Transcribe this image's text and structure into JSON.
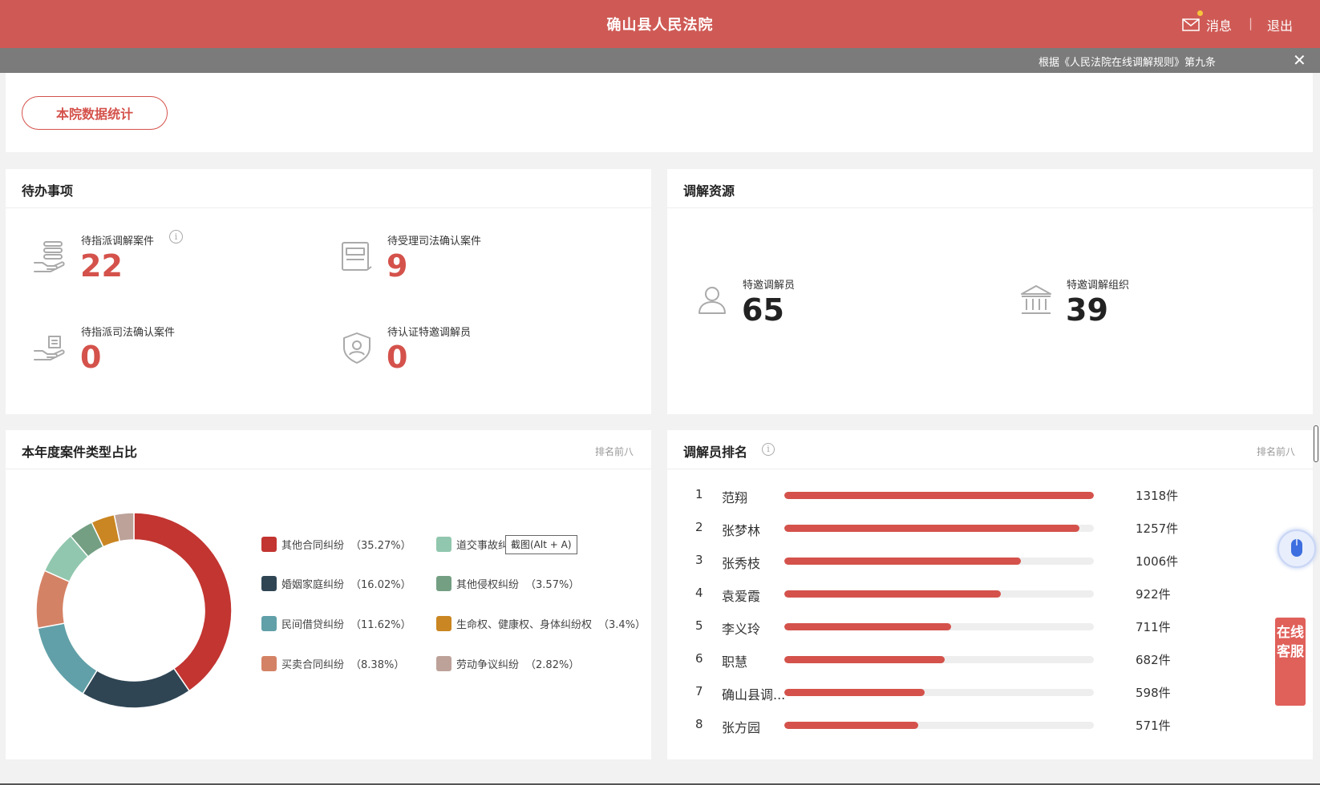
{
  "header": {
    "title": "确山县人民法院",
    "message": "消息",
    "separator": "|",
    "logout": "退出"
  },
  "notice": {
    "text": "根据《人民法院在线调解规则》第九条",
    "close": "✕"
  },
  "top": {
    "stats_button": "本院数据统计"
  },
  "todo": {
    "title": "待办事项",
    "items": [
      {
        "label": "待指派调解案件",
        "value": "22",
        "icon": "hand-stack-icon"
      },
      {
        "label": "待受理司法确认案件",
        "value": "9",
        "icon": "document-icon"
      },
      {
        "label": "待指派司法确认案件",
        "value": "0",
        "icon": "hand-court-icon"
      },
      {
        "label": "待认证特邀调解员",
        "value": "0",
        "icon": "shield-person-icon"
      }
    ]
  },
  "resources": {
    "title": "调解资源",
    "items": [
      {
        "label": "特邀调解员",
        "value": "65",
        "icon": "person-icon"
      },
      {
        "label": "特邀调解组织",
        "value": "39",
        "icon": "institution-icon"
      }
    ]
  },
  "case_types": {
    "title": "本年度案件类型占比",
    "more": "排名前八",
    "tooltip": "截图(Alt + A)",
    "legend": [
      {
        "name": "其他合同纠纷",
        "pct": "（35.27%）",
        "color": "#c23531"
      },
      {
        "name": "道交事故纠纷",
        "pct": "",
        "color": "#91c7ae"
      },
      {
        "name": "婚姻家庭纠纷",
        "pct": "（16.02%）",
        "color": "#2f4554"
      },
      {
        "name": "其他侵权纠纷",
        "pct": "（3.57%）",
        "color": "#749f83"
      },
      {
        "name": "民间借贷纠纷",
        "pct": "（11.62%）",
        "color": "#61a0a8"
      },
      {
        "name": "生命权、健康权、身体纠纷权",
        "pct": "（3.4%）",
        "color": "#ca8622"
      },
      {
        "name": "买卖合同纠纷",
        "pct": "（8.38%）",
        "color": "#d48265"
      },
      {
        "name": "劳动争议纠纷",
        "pct": "（2.82%）",
        "color": "#bda29a"
      }
    ]
  },
  "chart_data": {
    "type": "pie",
    "labels": [
      "其他合同纠纷",
      "婚姻家庭纠纷",
      "民间借贷纠纷",
      "买卖合同纠纷",
      "道交事故纠纷",
      "其他侵权纠纷",
      "生命权、健康权、身体纠纷权",
      "劳动争议纠纷"
    ],
    "values": [
      35.27,
      16.02,
      11.62,
      8.38,
      6.2,
      3.57,
      3.4,
      2.82
    ],
    "colors": [
      "#c23531",
      "#2f4554",
      "#61a0a8",
      "#d48265",
      "#91c7ae",
      "#749f83",
      "#ca8622",
      "#bda29a"
    ],
    "donut": true
  },
  "ranking": {
    "title": "调解员排名",
    "more": "排名前八",
    "rows": [
      {
        "rank": "1",
        "name": "范翔",
        "count": "1318件",
        "ratio": 1.0
      },
      {
        "rank": "2",
        "name": "张梦林",
        "count": "1257件",
        "ratio": 0.954
      },
      {
        "rank": "3",
        "name": "张秀枝",
        "count": "1006件",
        "ratio": 0.763
      },
      {
        "rank": "4",
        "name": "袁爱霞",
        "count": "922件",
        "ratio": 0.7
      },
      {
        "rank": "5",
        "name": "李义玲",
        "count": "711件",
        "ratio": 0.539
      },
      {
        "rank": "6",
        "name": "职慧",
        "count": "682件",
        "ratio": 0.517
      },
      {
        "rank": "7",
        "name": "确山县调...",
        "count": "598件",
        "ratio": 0.454
      },
      {
        "rank": "8",
        "name": "张方园",
        "count": "571件",
        "ratio": 0.433
      }
    ]
  },
  "side": {
    "kefu": "在线客服"
  }
}
